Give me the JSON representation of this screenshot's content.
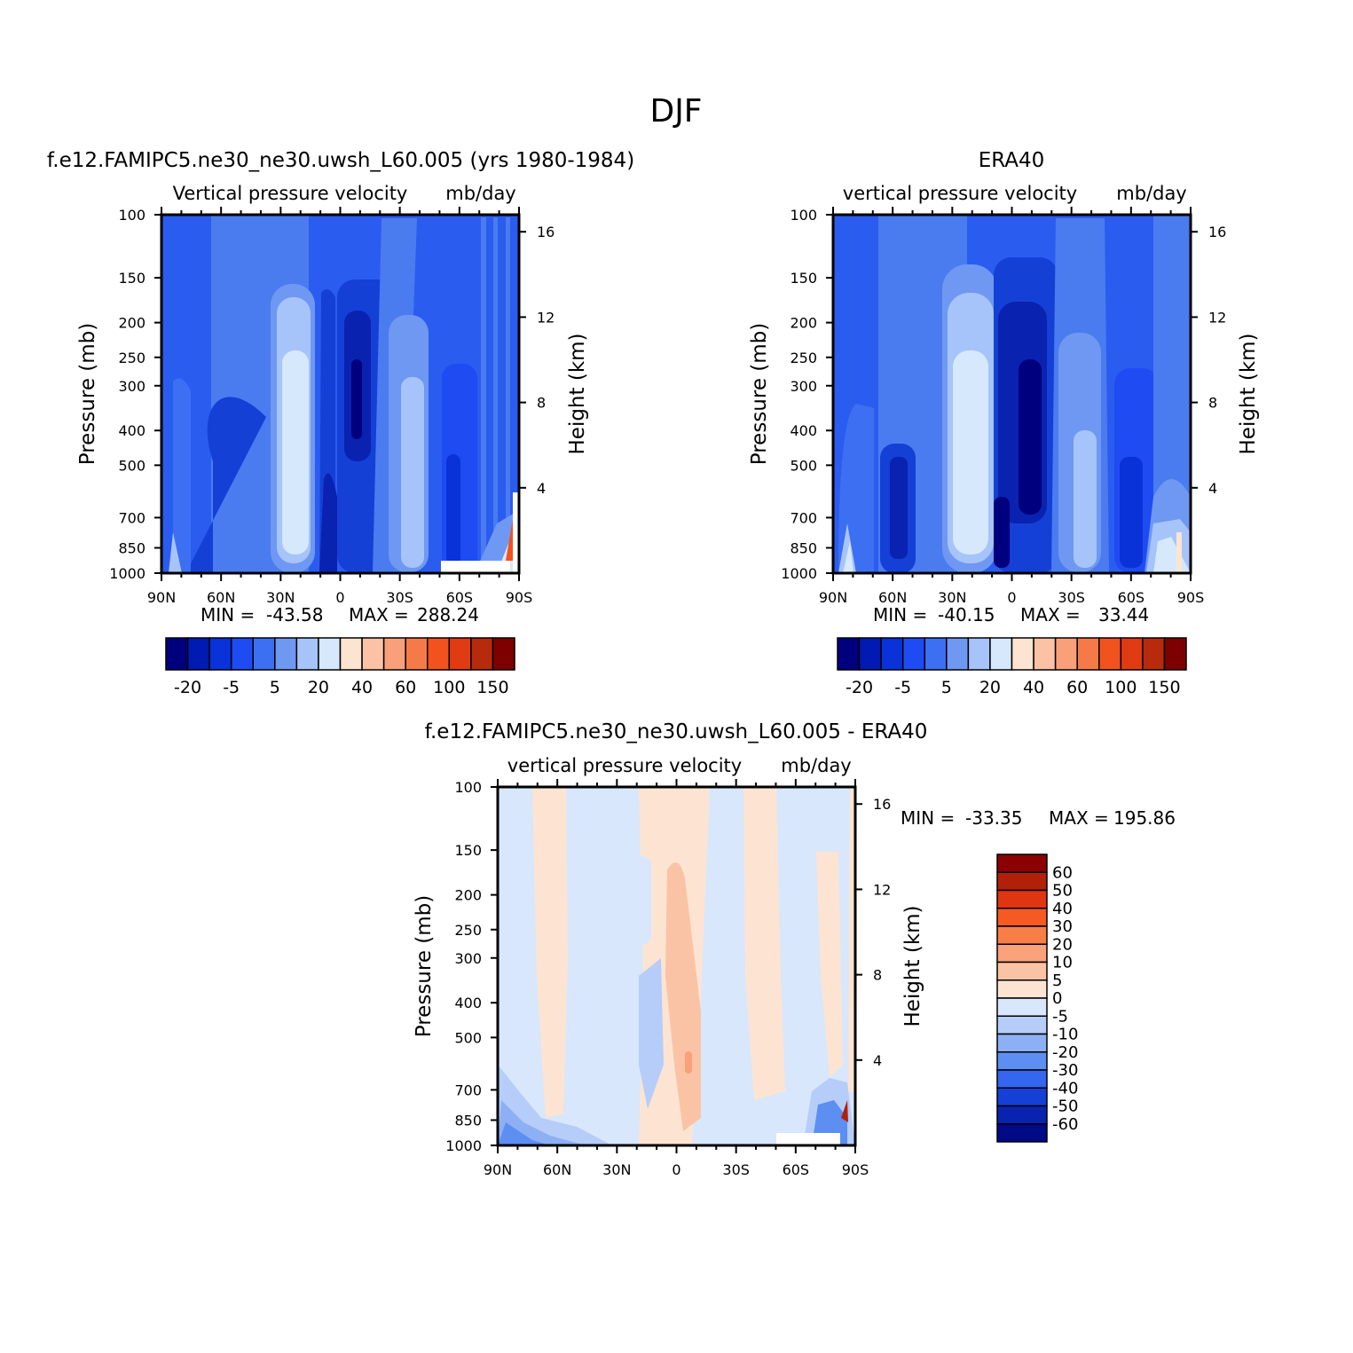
{
  "figure": {
    "title": "DJF"
  },
  "chart_data": [
    {
      "type": "heatmap",
      "title": "f.e12.FAMIPC5.ne30_ne30.uwsh_L60.005 (yrs 1980-1984)",
      "variable_label": "Vertical pressure velocity",
      "units_label": "mb/day",
      "ylabel": "Pressure (mb)",
      "ylabel_right": "Height (km)",
      "x_ticks": [
        "90N",
        "60N",
        "30N",
        "0",
        "30S",
        "60S",
        "90S"
      ],
      "y_ticks": [
        100,
        150,
        200,
        250,
        300,
        400,
        500,
        700,
        850,
        1000
      ],
      "y_right_ticks": [
        16,
        12,
        8,
        4
      ],
      "xlim": [
        90,
        -90
      ],
      "ylim": [
        1000,
        100
      ],
      "y_scale": "log",
      "stats": {
        "min_label": "MIN =",
        "min": "-43.58",
        "max_label": "MAX =",
        "max": "288.24"
      },
      "colorbar": {
        "orientation": "horizontal",
        "labels": [
          "-20",
          "-5",
          "5",
          "20",
          "40",
          "60",
          "100",
          "150"
        ],
        "colors": [
          "#00007f",
          "#001ab3",
          "#0a32d9",
          "#1e4cf2",
          "#3d6ff2",
          "#6f98f2",
          "#a6c4fa",
          "#d6e8fb",
          "#fde4d0",
          "#fcc2a5",
          "#f9a07a",
          "#f57a4a",
          "#f2521e",
          "#e03b12",
          "#b82a0c",
          "#7f0000"
        ]
      }
    },
    {
      "type": "heatmap",
      "title": "ERA40",
      "variable_label": "vertical pressure velocity",
      "units_label": "mb/day",
      "ylabel": "Pressure (mb)",
      "ylabel_right": "Height (km)",
      "x_ticks": [
        "90N",
        "60N",
        "30N",
        "0",
        "30S",
        "60S",
        "90S"
      ],
      "y_ticks": [
        100,
        150,
        200,
        250,
        300,
        400,
        500,
        700,
        850,
        1000
      ],
      "y_right_ticks": [
        16,
        12,
        8,
        4
      ],
      "xlim": [
        90,
        -90
      ],
      "ylim": [
        1000,
        100
      ],
      "y_scale": "log",
      "stats": {
        "min_label": "MIN =",
        "min": "-40.15",
        "max_label": "MAX =",
        "max": "33.44"
      },
      "colorbar": {
        "orientation": "horizontal",
        "labels": [
          "-20",
          "-5",
          "5",
          "20",
          "40",
          "60",
          "100",
          "150"
        ],
        "colors": [
          "#00007f",
          "#001ab3",
          "#0a32d9",
          "#1e4cf2",
          "#3d6ff2",
          "#6f98f2",
          "#a6c4fa",
          "#d6e8fb",
          "#fde4d0",
          "#fcc2a5",
          "#f9a07a",
          "#f57a4a",
          "#f2521e",
          "#e03b12",
          "#b82a0c",
          "#7f0000"
        ]
      }
    },
    {
      "type": "heatmap",
      "title": "f.e12.FAMIPC5.ne30_ne30.uwsh_L60.005 - ERA40",
      "variable_label": "vertical pressure velocity",
      "units_label": "mb/day",
      "ylabel": "Pressure (mb)",
      "ylabel_right": "Height (km)",
      "x_ticks": [
        "90N",
        "60N",
        "30N",
        "0",
        "30S",
        "60S",
        "90S"
      ],
      "y_ticks": [
        100,
        150,
        200,
        250,
        300,
        400,
        500,
        700,
        850,
        1000
      ],
      "y_right_ticks": [
        16,
        12,
        8,
        4
      ],
      "xlim": [
        90,
        -90
      ],
      "ylim": [
        1000,
        100
      ],
      "y_scale": "log",
      "stats": {
        "min_label": "MIN =",
        "min": "-33.35",
        "max_label": "MAX =",
        "max": "195.86"
      },
      "colorbar": {
        "orientation": "vertical",
        "labels": [
          "60",
          "50",
          "40",
          "30",
          "20",
          "10",
          "5",
          "0",
          "-5",
          "-10",
          "-20",
          "-30",
          "-40",
          "-50",
          "-60"
        ],
        "colors": [
          "#8b0000",
          "#b3200a",
          "#e03511",
          "#f45a22",
          "#f77e47",
          "#f9a17a",
          "#fbc3a5",
          "#fde4d2",
          "#d8e7fb",
          "#b5cdf8",
          "#8db0f5",
          "#5d8ef2",
          "#3466ef",
          "#1440d6",
          "#0a22b0",
          "#000a86"
        ]
      }
    }
  ]
}
